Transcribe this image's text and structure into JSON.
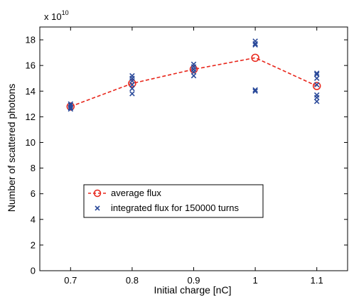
{
  "chart_data": {
    "type": "line",
    "title": "",
    "xlabel": "Initial charge [nC]",
    "ylabel": "Number of scattered photons",
    "y_multiplier_base": "x 10",
    "y_multiplier_exponent": "10",
    "xlim": [
      0.65,
      1.15
    ],
    "ylim": [
      0,
      19
    ],
    "x_ticks": [
      0.7,
      0.8,
      0.9,
      1.0,
      1.1
    ],
    "x_tick_labels": [
      "0.7",
      "0.8",
      "0.9",
      "1",
      "1.1"
    ],
    "y_ticks": [
      0,
      2,
      4,
      6,
      8,
      10,
      12,
      14,
      16,
      18
    ],
    "y_tick_labels": [
      "0",
      "2",
      "4",
      "6",
      "8",
      "10",
      "12",
      "14",
      "16",
      "18"
    ],
    "grid": false,
    "legend_position": "lower-center",
    "series": [
      {
        "name": "average flux",
        "style": "dashed-line-circle-markers",
        "color": "#e8261b",
        "x": [
          0.7,
          0.8,
          0.9,
          1.0,
          1.1
        ],
        "y": [
          12.8,
          14.6,
          15.7,
          16.6,
          14.4
        ]
      },
      {
        "name": "integrated flux for 150000 turns",
        "style": "x-markers",
        "color": "#2b4a9a",
        "points": [
          [
            0.7,
            12.6
          ],
          [
            0.7,
            12.75
          ],
          [
            0.7,
            12.9
          ],
          [
            0.7,
            13.0
          ],
          [
            0.7,
            12.7
          ],
          [
            0.8,
            13.8
          ],
          [
            0.8,
            14.2
          ],
          [
            0.8,
            14.5
          ],
          [
            0.8,
            14.8
          ],
          [
            0.8,
            15.0
          ],
          [
            0.8,
            15.2
          ],
          [
            0.9,
            15.2
          ],
          [
            0.9,
            15.5
          ],
          [
            0.9,
            15.7
          ],
          [
            0.9,
            15.9
          ],
          [
            0.9,
            16.1
          ],
          [
            1.0,
            14.0
          ],
          [
            1.0,
            14.1
          ],
          [
            1.0,
            17.7
          ],
          [
            1.0,
            17.9
          ],
          [
            1.0,
            17.6
          ],
          [
            1.1,
            13.2
          ],
          [
            1.1,
            13.5
          ],
          [
            1.1,
            13.7
          ],
          [
            1.1,
            14.5
          ],
          [
            1.1,
            15.0
          ],
          [
            1.1,
            15.3
          ],
          [
            1.1,
            15.4
          ]
        ]
      }
    ]
  }
}
